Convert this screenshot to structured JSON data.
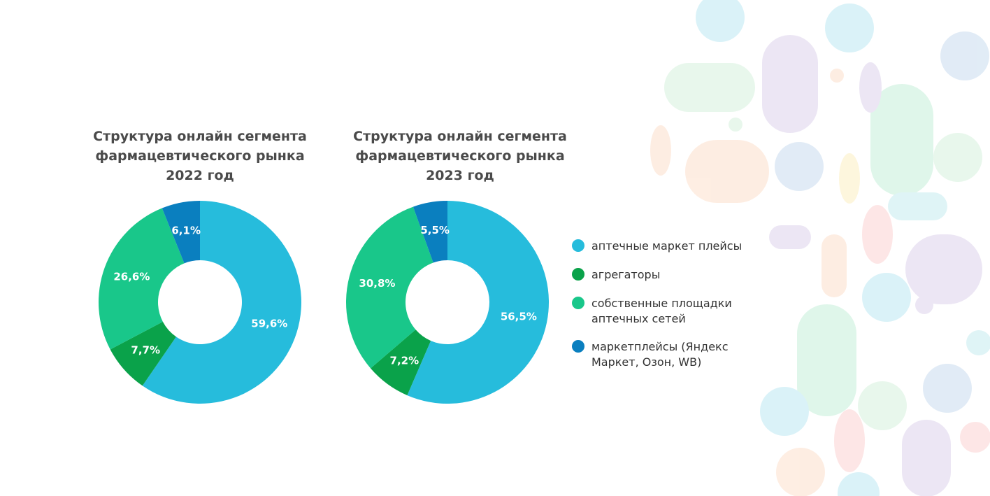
{
  "chart_data": [
    {
      "type": "pie",
      "title": "Структура онлайн сегмента фармацевтического рынка 2022 год",
      "categories": [
        "аптечные маркет плейсы",
        "агрегаторы",
        "собственные площадки аптечных сетей",
        "маркетплейсы (Яндекс Маркет, Озон, WB)"
      ],
      "values": [
        59.6,
        7.7,
        26.6,
        6.1
      ],
      "value_labels": [
        "59,6%",
        "7,7%",
        "26,6%",
        "6,1%"
      ],
      "colors": [
        "#26bcdc",
        "#0aa24a",
        "#19c78a",
        "#0a7fbf"
      ]
    },
    {
      "type": "pie",
      "title": "Структура онлайн сегмента фармацевтического рынка 2023 год",
      "categories": [
        "аптечные маркет плейсы",
        "агрегаторы",
        "собственные площадки аптечных сетей",
        "маркетплейсы (Яндекс Маркет, Озон, WB)"
      ],
      "values": [
        56.5,
        7.2,
        30.8,
        5.5
      ],
      "value_labels": [
        "56,5%",
        "7,2%",
        "30,8%",
        "5,5%"
      ],
      "colors": [
        "#26bcdc",
        "#0aa24a",
        "#19c78a",
        "#0a7fbf"
      ]
    }
  ]
}
